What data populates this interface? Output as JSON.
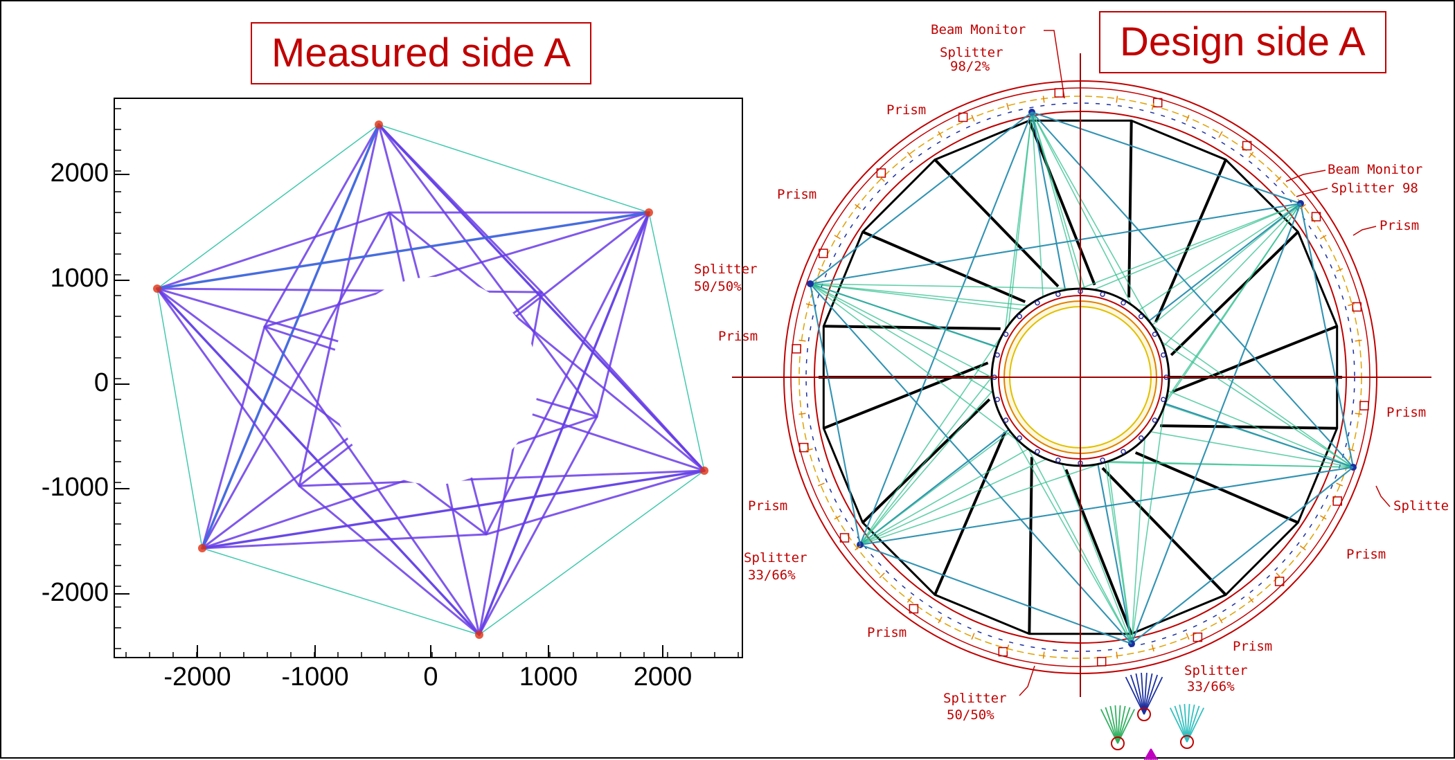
{
  "titles": {
    "measured": "Measured side A",
    "design": "Design side A"
  },
  "measured_plot": {
    "x_ticks": [
      "-2000",
      "-1000",
      "0",
      "1000",
      "2000"
    ],
    "y_ticks": [
      "2000",
      "1000",
      "0",
      "-1000",
      "-2000"
    ],
    "colors": {
      "beam_main": "#6a3ce8",
      "beam_hot": "#2a7bd9",
      "beam_accent": "#20c0a0",
      "beam_peak": "#e03010"
    }
  },
  "design_labels": {
    "beam_monitor_top": "Beam Monitor",
    "splitter_top": "Splitter",
    "splitter_top_ratio": "98/2%",
    "prism_1": "Prism",
    "beam_monitor_right": "Beam Monitor",
    "splitter_right": "Splitter 98",
    "prism_2": "Prism",
    "prism_3": "Prism",
    "splitter_left": "Splitter",
    "splitter_left_ratio": "50/50%",
    "prism_4": "Prism",
    "prism_5": "Prism",
    "prism_6": "Prism",
    "splitter_far_right": "Splitte",
    "splitter_lower_left": "Splitter",
    "splitter_lower_left_ratio": "33/66%",
    "prism_7": "Prism",
    "prism_8": "Prism",
    "prism_9": "Prism",
    "splitter_lower_right": "Splitter",
    "splitter_lower_right_ratio": "33/66%",
    "splitter_bottom": "Splitter",
    "splitter_bottom_ratio": "50/50%"
  },
  "design_colors": {
    "ring": "#c00000",
    "spoke": "#000000",
    "beam": "#2a8fb0",
    "beam_alt": "#30c090",
    "inner_fill": "#fff8e0"
  }
}
